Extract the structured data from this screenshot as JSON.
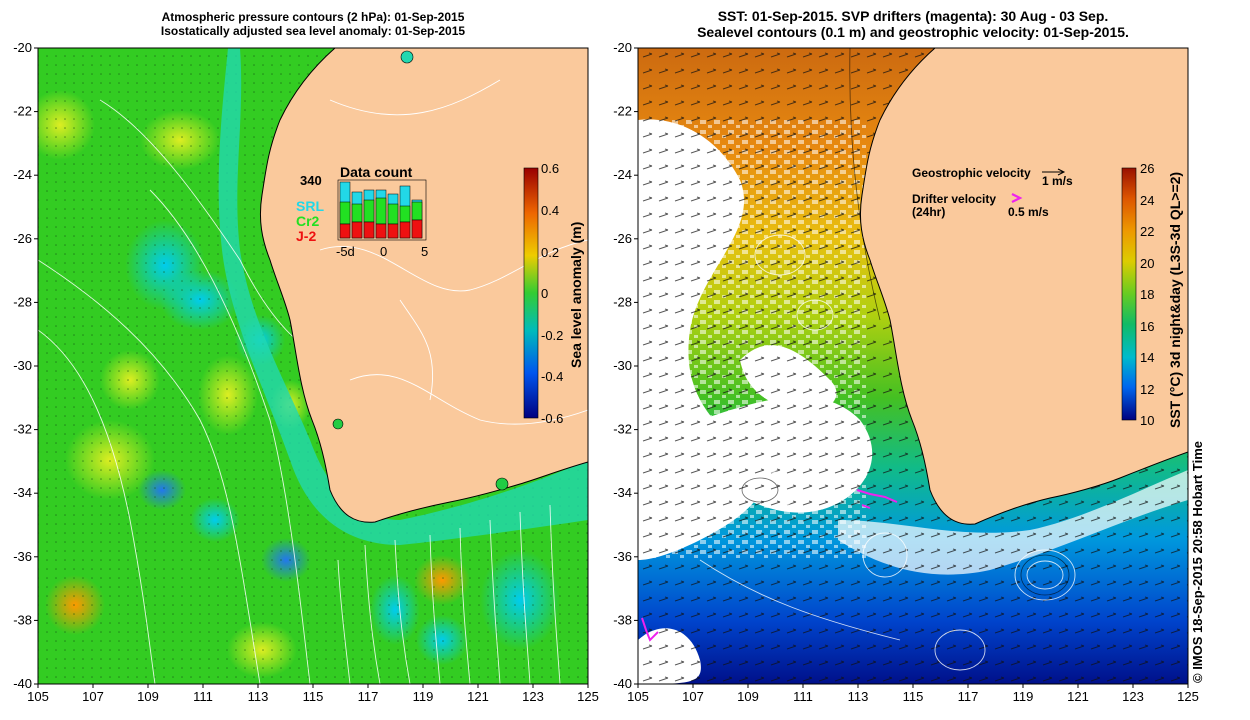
{
  "left_panel": {
    "title_line1": "Atmospheric pressure contours (2 hPa): 01-Sep-2015",
    "title_line2": "Isostatically adjusted sea level anomaly: 01-Sep-2015",
    "colorbar": {
      "label": "Sea level anomaly (m)",
      "ticks": [
        "0.6",
        "0.4",
        "0.2",
        "0",
        "-0.2",
        "-0.4",
        "-0.6"
      ]
    },
    "inset": {
      "title": "Data count",
      "max_count": "340",
      "satellites": [
        "SRL",
        "Cr2",
        "J-2"
      ],
      "satellite_colors": [
        "#22d8e8",
        "#22e022",
        "#ee1111"
      ],
      "xticks": [
        "-5d",
        "0",
        "5"
      ]
    }
  },
  "right_panel": {
    "title_line1": "SST: 01-Sep-2015. SVP drifters (magenta): 30 Aug - 03 Sep.",
    "title_line2": "Sealevel contours (0.1 m) and geostrophic velocity: 01-Sep-2015.",
    "colorbar": {
      "label": "SST (°C) 3d night&day (L3S-3d QL>=2)",
      "ticks": [
        "26",
        "24",
        "22",
        "20",
        "18",
        "16",
        "14",
        "12",
        "10"
      ]
    },
    "legend": {
      "geostrophic_label": "Geostrophic velocity",
      "geostrophic_scale": "1 m/s",
      "drifter_label": "Drifter velocity",
      "drifter_sublabel": "(24hr)",
      "drifter_scale": "0.5 m/s"
    }
  },
  "y_axis_labels": [
    "-20",
    "-22",
    "-24",
    "-26",
    "-28",
    "-30",
    "-32",
    "-34",
    "-36",
    "-38",
    "-40"
  ],
  "x_axis_labels": [
    "105",
    "107",
    "109",
    "111",
    "113",
    "115",
    "117",
    "119",
    "121",
    "123",
    "125"
  ],
  "credit": "© IMOS 18-Sep-2015 20:58 Hobart Time",
  "colors": {
    "land": "#fac99c",
    "drifter": "#ee22ee",
    "sla_scale": [
      "#000080",
      "#0044ee",
      "#00bbee",
      "#00cc66",
      "#33dd22",
      "#aadd22",
      "#eebb00",
      "#dd6600",
      "#990000"
    ],
    "sst_scale": [
      "#000080",
      "#0044ee",
      "#0099ee",
      "#00bbaa",
      "#11cc66",
      "#44cc22",
      "#aad011",
      "#ddaa00",
      "#dd7700",
      "#aa2200"
    ]
  }
}
